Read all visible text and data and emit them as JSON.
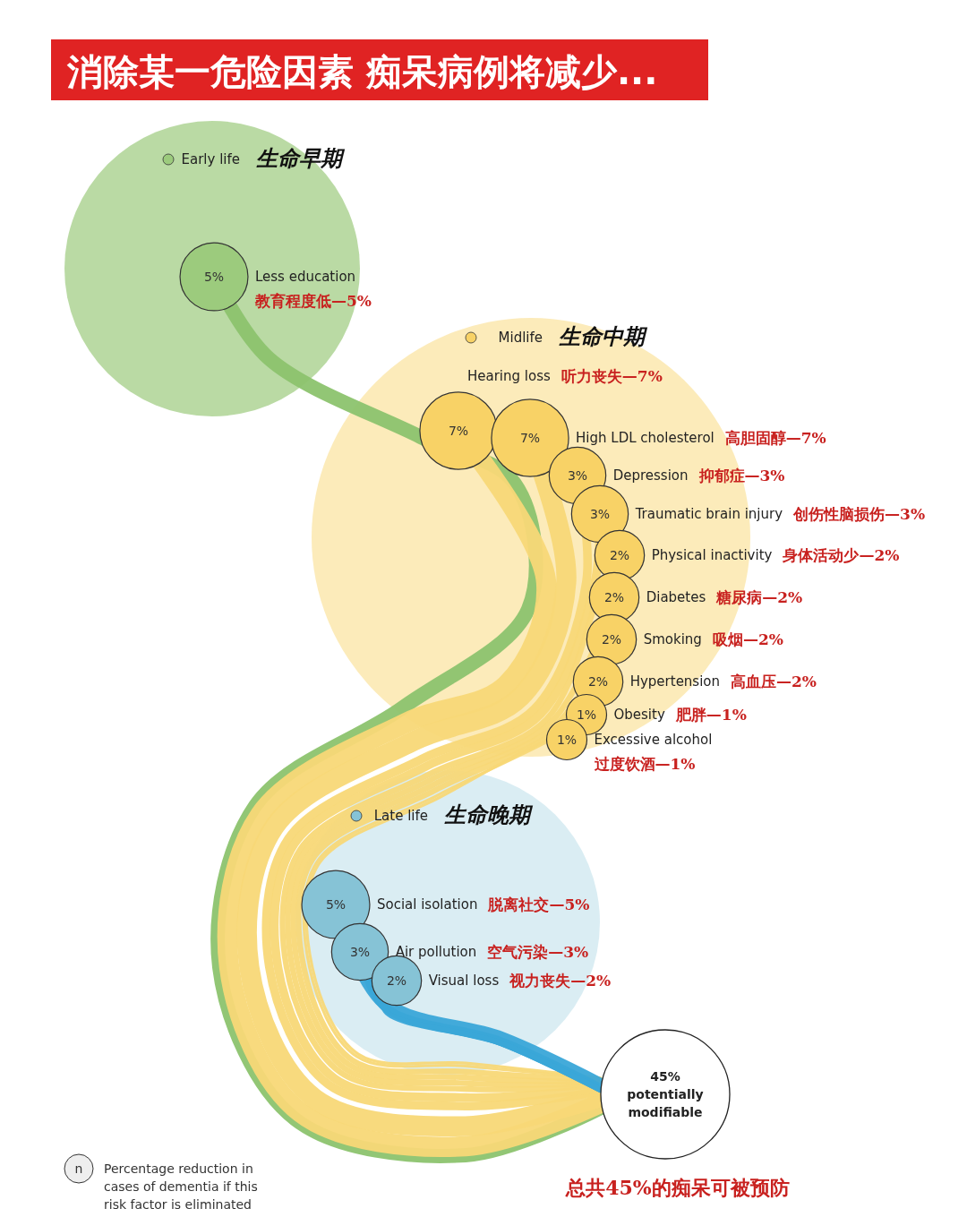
{
  "chart_data": {
    "type": "other",
    "legend": "left",
    "title": "消除某一危险因素 痴呆病例将减少...",
    "categories": [
      "Less education",
      "Hearing loss",
      "High LDL cholesterol",
      "Depression",
      "Traumatic brain injury",
      "Physical inactivity",
      "Diabetes",
      "Smoking",
      "Hypertension",
      "Obesity",
      "Excessive alcohol",
      "Social isolation",
      "Air pollution",
      "Visual loss"
    ],
    "series": [
      {
        "name": "Early life",
        "color": "#9ccb7d",
        "values": [
          5,
          null,
          null,
          null,
          null,
          null,
          null,
          null,
          null,
          null,
          null,
          null,
          null,
          null
        ],
        "value_labels": [
          "5%",
          null,
          null,
          null,
          null,
          null,
          null,
          null,
          null,
          null,
          null,
          null,
          null,
          null
        ]
      },
      {
        "name": "Midlife",
        "color": "#f8d266",
        "values": [
          null,
          7,
          7,
          3,
          3,
          2,
          2,
          2,
          2,
          1,
          1,
          null,
          null,
          null
        ],
        "value_labels": [
          null,
          "7%",
          "7%",
          "3%",
          "3%",
          "2%",
          "2%",
          "2%",
          "2%",
          "1%",
          "1%",
          null,
          null,
          null
        ]
      },
      {
        "name": "Late life",
        "color": "#86c3d6",
        "values": [
          null,
          null,
          null,
          null,
          null,
          null,
          null,
          null,
          null,
          null,
          null,
          5,
          3,
          2
        ],
        "value_labels": [
          null,
          null,
          null,
          null,
          null,
          null,
          null,
          null,
          null,
          null,
          null,
          "5%",
          "3%",
          "2%"
        ]
      }
    ],
    "annotations": [
      "生命早期",
      "生命中期",
      "生命晚期",
      "45% potentially modifiable",
      "总共45%的痴呆可被预防",
      "n",
      "Percentage reduction in cases of dementia if this risk factor is eliminated",
      "教育程度低—5%",
      "听力丧失—7%",
      "高胆固醇—7%",
      "抑郁症—3%",
      "创伤性脑损伤—3%",
      "身体活动少—2%",
      "糖尿病—2%",
      "吸烟—2%",
      "高血压—2%",
      "肥胖—1%",
      "过度饮酒—1%",
      "脱离社交—5%",
      "空气污染—3%",
      "视力丧失—2%"
    ]
  }
}
